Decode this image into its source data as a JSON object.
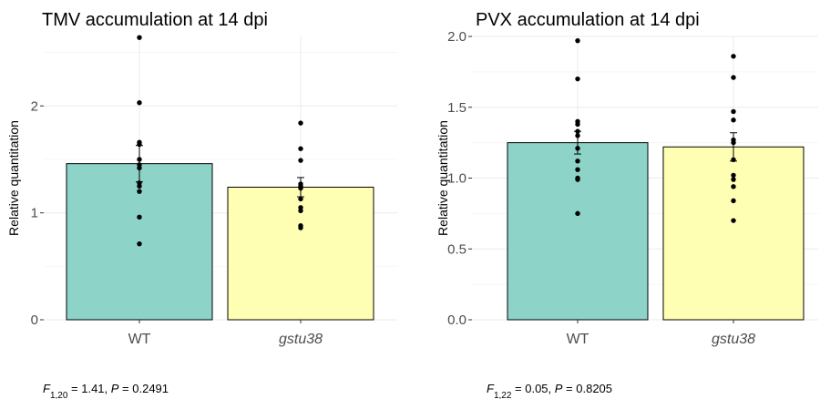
{
  "colors": {
    "WT": "#8dd3c7",
    "gstu38": "#ffffb3"
  },
  "chart_data": [
    {
      "type": "bar",
      "title": "TMV accumulation at 14 dpi",
      "ylabel": "Relative quantitation",
      "xlabel": "",
      "categories": [
        "WT",
        "gstu38"
      ],
      "italic_categories": [
        false,
        true
      ],
      "values": [
        1.46,
        1.24
      ],
      "errors": [
        0.17,
        0.09
      ],
      "ylim": [
        0,
        2.65
      ],
      "yticks": [
        0,
        1,
        2
      ],
      "ytick_labels": [
        "0",
        "1",
        "2"
      ],
      "minor_step": 0.5,
      "grid": true,
      "points": [
        [
          2.64,
          2.03,
          1.66,
          1.64,
          1.5,
          1.45,
          1.42,
          1.28,
          1.25,
          1.2,
          0.96,
          0.71
        ],
        [
          1.84,
          1.6,
          1.49,
          1.27,
          1.25,
          1.23,
          1.13,
          1.05,
          1.02,
          0.88,
          0.86
        ]
      ],
      "stat": {
        "F_sub": "1,20",
        "F": "1.41",
        "P": "0.2491"
      }
    },
    {
      "type": "bar",
      "title": "PVX accumulation at 14 dpi",
      "ylabel": "Relative quantitation",
      "xlabel": "",
      "categories": [
        "WT",
        "gstu38"
      ],
      "italic_categories": [
        false,
        true
      ],
      "values": [
        1.25,
        1.22
      ],
      "errors": [
        0.08,
        0.1
      ],
      "ylim": [
        0,
        2.0
      ],
      "yticks": [
        0.0,
        0.5,
        1.0,
        1.5,
        2.0
      ],
      "ytick_labels": [
        "0.0",
        "0.5",
        "1.0",
        "1.5",
        "2.0"
      ],
      "minor_step": 0.25,
      "grid": true,
      "points": [
        [
          1.97,
          1.7,
          1.4,
          1.38,
          1.33,
          1.3,
          1.21,
          1.12,
          1.06,
          1.0,
          0.99,
          0.75
        ],
        [
          1.86,
          1.71,
          1.47,
          1.41,
          1.27,
          1.25,
          1.13,
          1.02,
          0.99,
          0.94,
          0.84,
          0.7
        ]
      ],
      "stat": {
        "F_sub": "1,22",
        "F": "0.05",
        "P": "0.8205"
      }
    }
  ]
}
